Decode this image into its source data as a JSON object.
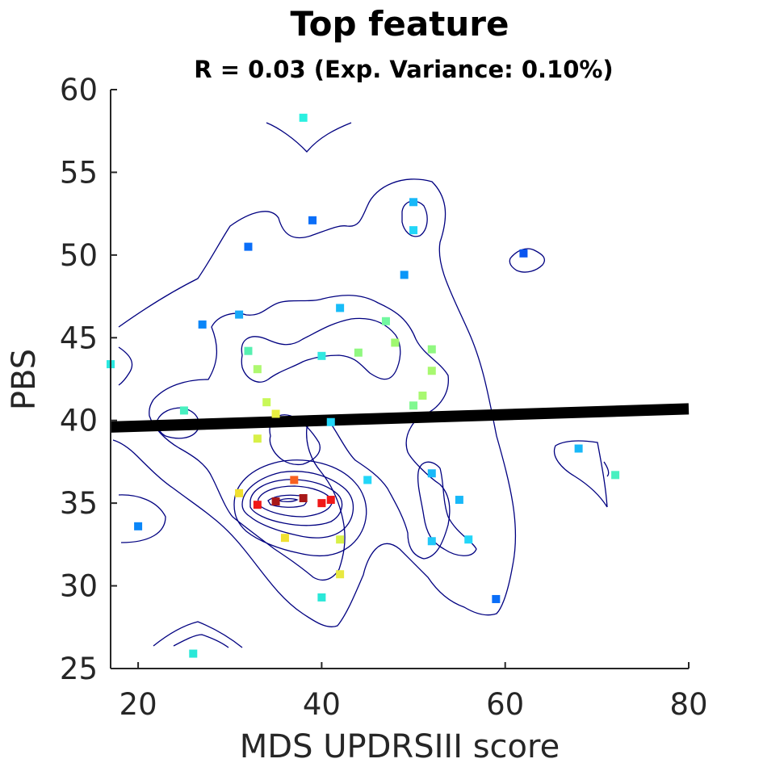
{
  "chart_data": {
    "type": "scatter",
    "title": "Top feature",
    "subtitle": "R = 0.03 (Exp. Variance: 0.10%)",
    "xlabel": "MDS UPDRSIII score",
    "ylabel": "PBS",
    "xlim": [
      17,
      80
    ],
    "ylim": [
      25,
      60
    ],
    "xticks": [
      20,
      40,
      60,
      80
    ],
    "yticks": [
      25,
      30,
      35,
      40,
      45,
      50,
      55,
      60
    ],
    "xtick_labels": [
      "20",
      "40",
      "60",
      "80"
    ],
    "ytick_labels": [
      "25",
      "30",
      "35",
      "40",
      "45",
      "50",
      "55",
      "60"
    ],
    "grid": false,
    "box": false,
    "regression_line": {
      "x": [
        17,
        80
      ],
      "y": [
        39.6,
        40.7
      ],
      "color": "#000000"
    },
    "contour_color": "#000080",
    "points": [
      {
        "x": 38,
        "y": 58.3,
        "color": "#2af0e0"
      },
      {
        "x": 50,
        "y": 53.2,
        "color": "#18b8f8"
      },
      {
        "x": 39,
        "y": 52.1,
        "color": "#0a6ef8"
      },
      {
        "x": 50,
        "y": 51.5,
        "color": "#22d6f8"
      },
      {
        "x": 32,
        "y": 50.5,
        "color": "#0a6ef8"
      },
      {
        "x": 62,
        "y": 50.1,
        "color": "#0a56f0"
      },
      {
        "x": 49,
        "y": 48.8,
        "color": "#0a96f8"
      },
      {
        "x": 42,
        "y": 46.8,
        "color": "#18bcf8"
      },
      {
        "x": 31,
        "y": 46.4,
        "color": "#18a8f8"
      },
      {
        "x": 27,
        "y": 45.8,
        "color": "#0a86f8"
      },
      {
        "x": 47,
        "y": 46.0,
        "color": "#72f8a0"
      },
      {
        "x": 48,
        "y": 44.7,
        "color": "#a0f870"
      },
      {
        "x": 32,
        "y": 44.2,
        "color": "#56f0b0"
      },
      {
        "x": 44,
        "y": 44.1,
        "color": "#90f880"
      },
      {
        "x": 52,
        "y": 44.3,
        "color": "#90f880"
      },
      {
        "x": 40,
        "y": 43.9,
        "color": "#30e8e0"
      },
      {
        "x": 17,
        "y": 43.4,
        "color": "#2ae8e0"
      },
      {
        "x": 33,
        "y": 43.1,
        "color": "#aef870"
      },
      {
        "x": 52,
        "y": 43.0,
        "color": "#a8f870"
      },
      {
        "x": 51,
        "y": 41.5,
        "color": "#a8f870"
      },
      {
        "x": 34,
        "y": 41.1,
        "color": "#c8f858"
      },
      {
        "x": 50,
        "y": 40.9,
        "color": "#80f890"
      },
      {
        "x": 25,
        "y": 40.6,
        "color": "#48f0c0"
      },
      {
        "x": 35,
        "y": 40.4,
        "color": "#e8f040"
      },
      {
        "x": 41,
        "y": 39.9,
        "color": "#22d6f8"
      },
      {
        "x": 33,
        "y": 38.9,
        "color": "#d8f048"
      },
      {
        "x": 68,
        "y": 38.3,
        "color": "#18b8f8"
      },
      {
        "x": 52,
        "y": 36.8,
        "color": "#18b8f8"
      },
      {
        "x": 72,
        "y": 36.7,
        "color": "#48f0c0"
      },
      {
        "x": 37,
        "y": 36.4,
        "color": "#f86020"
      },
      {
        "x": 45,
        "y": 36.4,
        "color": "#22d6f8"
      },
      {
        "x": 31,
        "y": 35.6,
        "color": "#f0e030"
      },
      {
        "x": 38,
        "y": 35.3,
        "color": "#a81818"
      },
      {
        "x": 55,
        "y": 35.2,
        "color": "#18b8f8"
      },
      {
        "x": 41,
        "y": 35.2,
        "color": "#f01818"
      },
      {
        "x": 35,
        "y": 35.1,
        "color": "#a81818"
      },
      {
        "x": 40,
        "y": 35.0,
        "color": "#f01818"
      },
      {
        "x": 33,
        "y": 34.9,
        "color": "#f01818"
      },
      {
        "x": 20,
        "y": 33.6,
        "color": "#0a86f8"
      },
      {
        "x": 36,
        "y": 32.9,
        "color": "#f0e030"
      },
      {
        "x": 42,
        "y": 32.8,
        "color": "#d8f048"
      },
      {
        "x": 56,
        "y": 32.8,
        "color": "#22d6f8"
      },
      {
        "x": 52,
        "y": 32.7,
        "color": "#22c8f8"
      },
      {
        "x": 42,
        "y": 30.7,
        "color": "#e8e840"
      },
      {
        "x": 40,
        "y": 29.3,
        "color": "#2ae8d8"
      },
      {
        "x": 59,
        "y": 29.2,
        "color": "#0a6ef8"
      },
      {
        "x": 26,
        "y": 25.9,
        "color": "#2ae8d8"
      }
    ]
  }
}
